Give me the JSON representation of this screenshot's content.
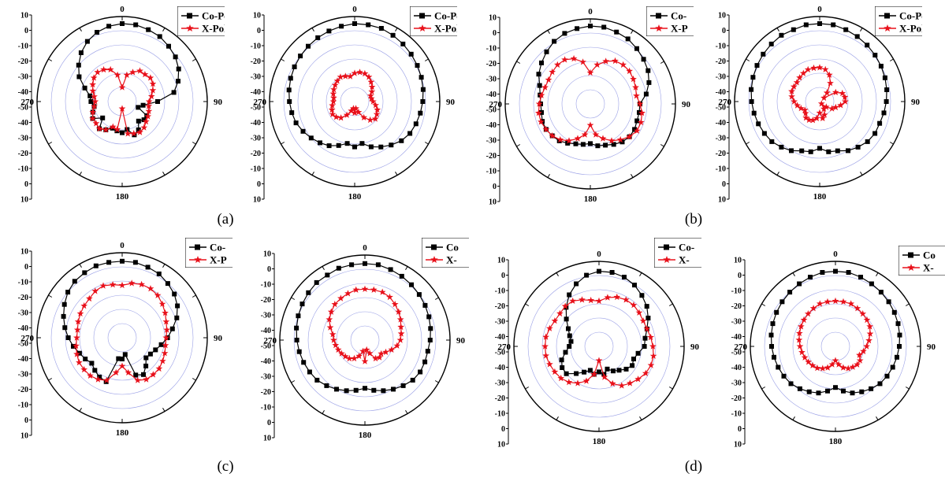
{
  "panel_labels": [
    "(a)",
    "(b)",
    "(c)",
    "(d)"
  ],
  "colors": {
    "co": "#000000",
    "x": "#e8101a",
    "grid": "#9aa0e6",
    "frame": "#000000"
  },
  "chart_data": [
    {
      "type": "polar-line",
      "panel": "(a)",
      "angle_labels": [
        "0",
        "90",
        "180",
        "270"
      ],
      "r_tick_labels": [
        "10",
        "0",
        "-10",
        "-20",
        "-30",
        "-40",
        "-50",
        "-40",
        "-30",
        "-20",
        "-10",
        "0",
        "10"
      ],
      "rlim": [
        -50,
        10
      ],
      "legend": [
        "Co-Po",
        "X-Pol"
      ],
      "series": [
        {
          "name": "Co-Po",
          "values": [
            5,
            5,
            4,
            3,
            1,
            -1,
            -4,
            -8,
            -13,
            -25,
            -35,
            -38,
            -30,
            -30,
            -32,
            -27,
            -25,
            -30,
            -28,
            -29,
            -30,
            -27,
            -25,
            -32,
            -26,
            -28,
            -30,
            -28,
            -27,
            -22,
            -15,
            -10,
            -5,
            -1,
            2,
            4
          ]
        },
        {
          "name": "X-Pol",
          "values": [
            -40,
            -31,
            -28,
            -25,
            -25,
            -24,
            -25,
            -27,
            -29,
            -31,
            -31,
            -30,
            -29,
            -28,
            -26,
            -25,
            -26,
            -27,
            -45,
            -30,
            -31,
            -27,
            -25,
            -26,
            -26,
            -28,
            -30,
            -31,
            -30,
            -28,
            -26,
            -24,
            -23,
            -24,
            -26,
            -31
          ]
        }
      ]
    },
    {
      "type": "polar-line",
      "panel": "(a)",
      "angle_labels": [
        "0",
        "90",
        "180",
        "270"
      ],
      "r_tick_labels": [
        "10",
        "0",
        "-10",
        "-20",
        "-30",
        "-40",
        "-50",
        "-40",
        "-30",
        "-20",
        "-10",
        "0",
        "10"
      ],
      "rlim": [
        -50,
        10
      ],
      "legend": [
        "Co-Pol",
        "X-Pol"
      ],
      "series": [
        {
          "name": "Co-Pol",
          "values": [
            5,
            5,
            5,
            4,
            3,
            2,
            1,
            0,
            -1,
            -2,
            -3,
            -4,
            -5,
            -7,
            -10,
            -13,
            -16,
            -20,
            -18,
            -20,
            -17,
            -14,
            -12,
            -10,
            -8,
            -6,
            -5,
            -4,
            -3,
            -2,
            -1,
            0,
            1,
            2,
            3,
            4
          ]
        },
        {
          "name": "X-Pol",
          "values": [
            -30,
            -29,
            -29,
            -30,
            -32,
            -34,
            -36,
            -38,
            -38,
            -37,
            -35,
            -33,
            -32,
            -31,
            -33,
            -37,
            -42,
            -45,
            -42,
            -45,
            -43,
            -39,
            -35,
            -33,
            -32,
            -33,
            -34,
            -35,
            -35,
            -34,
            -33,
            -32,
            -31,
            -30,
            -31,
            -32
          ]
        }
      ]
    },
    {
      "type": "polar-line",
      "panel": "(b)",
      "angle_labels": [
        "0",
        "90",
        "180",
        "270"
      ],
      "r_tick_labels": [
        "10",
        "0",
        "-10",
        "-20",
        "-30",
        "-40",
        "-50",
        "-40",
        "-30",
        "-20",
        "-10",
        "0",
        "10"
      ],
      "rlim": [
        -50,
        10
      ],
      "legend": [
        "Co-",
        "X-P"
      ],
      "series": [
        {
          "name": "Co-",
          "values": [
            5,
            5,
            4,
            3,
            1,
            -1,
            -3,
            -6,
            -10,
            -15,
            -15,
            -15,
            -14,
            -14,
            -15,
            -17,
            -19,
            -20,
            -22,
            -21,
            -20,
            -18,
            -16,
            -15,
            -14,
            -14,
            -15,
            -15,
            -14,
            -12,
            -8,
            -5,
            -2,
            1,
            3,
            4
          ]
        },
        {
          "name": "X-P",
          "values": [
            -28,
            -22,
            -18,
            -15,
            -14,
            -14,
            -15,
            -16,
            -17,
            -15,
            -13,
            -12,
            -12,
            -14,
            -17,
            -20,
            -24,
            -28,
            -35,
            -28,
            -24,
            -20,
            -17,
            -15,
            -14,
            -13,
            -13,
            -14,
            -15,
            -16,
            -16,
            -15,
            -14,
            -14,
            -16,
            -20
          ]
        }
      ]
    },
    {
      "type": "polar-line",
      "panel": "(b)",
      "angle_labels": [
        "0",
        "90",
        "180",
        "270"
      ],
      "r_tick_labels": [
        "10",
        "0",
        "-10",
        "-20",
        "-30",
        "-40",
        "-50",
        "-40",
        "-30",
        "-20",
        "-10",
        "0",
        "10"
      ],
      "rlim": [
        -50,
        10
      ],
      "legend": [
        "Co-Pol.",
        "X-Pol."
      ],
      "series": [
        {
          "name": "Co-Pol.",
          "values": [
            5,
            5,
            4,
            3,
            2,
            1,
            0,
            -1,
            -2,
            -3,
            -4,
            -5,
            -5,
            -6,
            -8,
            -10,
            -13,
            -14,
            -17,
            -14,
            -13,
            -10,
            -8,
            -6,
            -5,
            -4,
            -3,
            -2,
            -1,
            0,
            1,
            2,
            3,
            4,
            4,
            5
          ]
        },
        {
          "name": "X-Pol.",
          "values": [
            -26,
            -27,
            -30,
            -35,
            -42,
            -46,
            -37,
            -33,
            -32,
            -32,
            -35,
            -38,
            -40,
            -44,
            -48,
            -44,
            -40,
            -38,
            -42,
            -38,
            -36,
            -35,
            -35,
            -37,
            -38,
            -36,
            -34,
            -32,
            -30,
            -29,
            -29,
            -29,
            -28,
            -27,
            -26,
            -26
          ]
        }
      ]
    },
    {
      "type": "polar-line",
      "panel": "(c)",
      "angle_labels": [
        "0",
        "90",
        "180",
        "270"
      ],
      "r_tick_labels": [
        "10",
        "0",
        "-10",
        "-20",
        "-30",
        "-40",
        "-50",
        "-40",
        "-30",
        "-20",
        "-10",
        "0",
        "10"
      ],
      "rlim": [
        -50,
        10
      ],
      "legend": [
        "Co-",
        "X-P"
      ],
      "series": [
        {
          "name": "Co-",
          "values": [
            4,
            4,
            3,
            2,
            0,
            -2,
            -5,
            -9,
            -14,
            -18,
            -22,
            -25,
            -27,
            -28,
            -24,
            -20,
            -22,
            -38,
            -35,
            -35,
            -17,
            -18,
            -20,
            -22,
            -20,
            -18,
            -15,
            -12,
            -9,
            -6,
            -3,
            0,
            2,
            3,
            4,
            4
          ]
        },
        {
          "name": "X-P",
          "values": [
            -13,
            -11,
            -10,
            -10,
            -11,
            -13,
            -15,
            -17,
            -18,
            -19,
            -19,
            -18,
            -17,
            -16,
            -16,
            -16,
            -18,
            -25,
            -30,
            -25,
            -18,
            -16,
            -15,
            -15,
            -15,
            -16,
            -17,
            -18,
            -18,
            -17,
            -16,
            -15,
            -14,
            -12,
            -11,
            -12
          ]
        }
      ]
    },
    {
      "type": "polar-line",
      "panel": "(c)",
      "angle_labels": [
        "0",
        "90",
        "180",
        "270"
      ],
      "r_tick_labels": [
        "10",
        "0",
        "-10",
        "-20",
        "-30",
        "-40",
        "-50",
        "-40",
        "-30",
        "-20",
        "-10",
        "0",
        "10"
      ],
      "rlim": [
        -50,
        10
      ],
      "legend": [
        "Co",
        "X-"
      ],
      "series": [
        {
          "name": "Co",
          "values": [
            4,
            4,
            3,
            2,
            1,
            0,
            -1,
            -2,
            -3,
            -4,
            -5,
            -5,
            -5,
            -6,
            -8,
            -10,
            -12,
            -14,
            -16,
            -14,
            -12,
            -10,
            -8,
            -6,
            -5,
            -4,
            -3,
            -2,
            -1,
            0,
            1,
            2,
            3,
            3,
            4,
            4
          ]
        },
        {
          "name": "X-",
          "values": [
            -14,
            -14,
            -14,
            -15,
            -17,
            -19,
            -21,
            -23,
            -24,
            -25,
            -27,
            -30,
            -33,
            -35,
            -34,
            -35,
            -40,
            -43,
            -35,
            -42,
            -38,
            -35,
            -33,
            -32,
            -31,
            -30,
            -29,
            -28,
            -27,
            -24,
            -21,
            -19,
            -17,
            -16,
            -15,
            -14
          ]
        }
      ]
    },
    {
      "type": "polar-line",
      "panel": "(d)",
      "angle_labels": [
        "0",
        "90",
        "180",
        "270"
      ],
      "r_tick_labels": [
        "10",
        "0",
        "-10",
        "-20",
        "-30",
        "-40",
        "-50",
        "-40",
        "-30",
        "-20",
        "-10",
        "0",
        "10"
      ],
      "rlim": [
        -50,
        10
      ],
      "legend": [
        "Co-",
        "X-"
      ],
      "series": [
        {
          "name": "Co-",
          "values": [
            3,
            3,
            2,
            0,
            -3,
            -6,
            -10,
            -14,
            -17,
            -18,
            -22,
            -24,
            -23,
            -25,
            -28,
            -30,
            -33,
            -30,
            -32,
            -30,
            -32,
            -29,
            -25,
            -20,
            -20,
            -22,
            -26,
            -29,
            -30,
            -28,
            -25,
            -20,
            -14,
            -8,
            -3,
            1
          ]
        },
        {
          "name": "X-",
          "values": [
            -18,
            -15,
            -13,
            -12,
            -12,
            -13,
            -14,
            -14,
            -13,
            -12,
            -11,
            -11,
            -12,
            -14,
            -16,
            -18,
            -22,
            -28,
            -40,
            -30,
            -24,
            -20,
            -17,
            -15,
            -14,
            -13,
            -12,
            -12,
            -12,
            -13,
            -14,
            -14,
            -13,
            -13,
            -15,
            -17
          ]
        }
      ]
    },
    {
      "type": "polar-line",
      "panel": "(d)",
      "angle_labels": [
        "0",
        "90",
        "180",
        "270"
      ],
      "r_tick_labels": [
        "10",
        "0",
        "-10",
        "-20",
        "-30",
        "-40",
        "-50",
        "-40",
        "-30",
        "-20",
        "-10",
        "0",
        "10"
      ],
      "rlim": [
        -50,
        10
      ],
      "legend": [
        "Co",
        "X-"
      ],
      "series": [
        {
          "name": "Co",
          "values": [
            3,
            3,
            2,
            1,
            0,
            -1,
            -2,
            -3,
            -4,
            -5,
            -6,
            -7,
            -8,
            -9,
            -11,
            -13,
            -15,
            -18,
            -21,
            -18,
            -15,
            -13,
            -11,
            -9,
            -8,
            -7,
            -6,
            -5,
            -4,
            -3,
            -2,
            -1,
            0,
            1,
            2,
            3
          ]
        },
        {
          "name": "X-",
          "values": [
            -18,
            -18,
            -18,
            -19,
            -20,
            -21,
            -22,
            -24,
            -26,
            -28,
            -30,
            -32,
            -30,
            -30,
            -31,
            -32,
            -34,
            -37,
            -40,
            -37,
            -34,
            -32,
            -30,
            -29,
            -28,
            -27,
            -26,
            -25,
            -24,
            -23,
            -22,
            -21,
            -20,
            -19,
            -18,
            -18
          ]
        }
      ]
    }
  ]
}
